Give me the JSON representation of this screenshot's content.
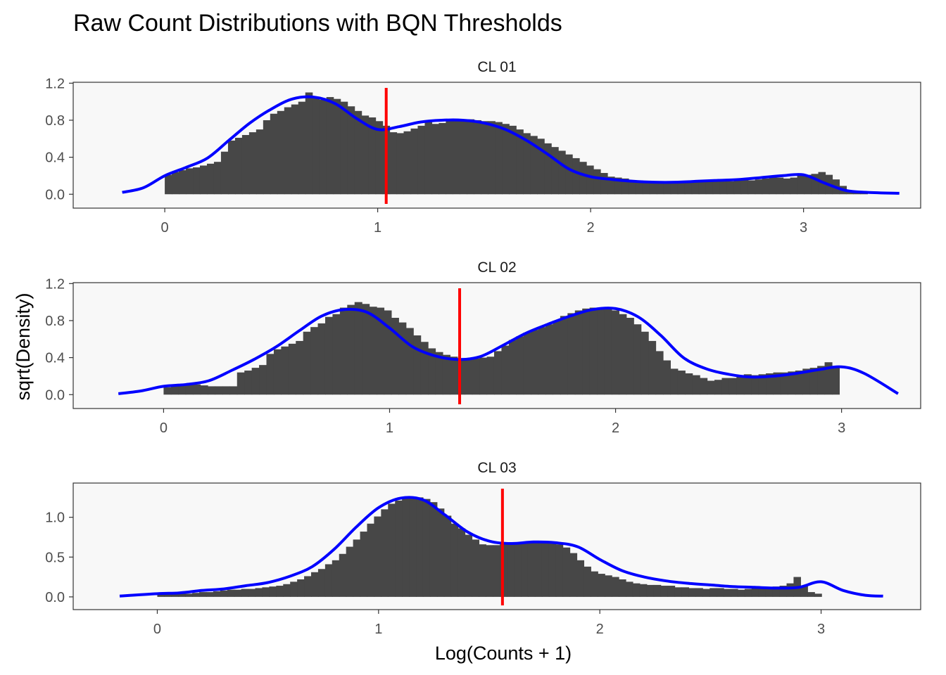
{
  "chart_data": {
    "type": "histogram",
    "title": "Raw Count Distributions with BQN Thresholds",
    "xlabel": "Log(Counts + 1)",
    "ylabel": "sqrt(Density)",
    "grid": false,
    "colors": {
      "bars": "#474747",
      "density": "#0000ff",
      "threshold": "#ff0000",
      "panel": "#f8f8f8",
      "border": "#333333"
    },
    "panels": [
      {
        "label": "CL 01",
        "xlim": [
          -0.43,
          3.55
        ],
        "ylim": [
          -0.15,
          1.21
        ],
        "xticks": [
          0,
          1,
          2,
          3
        ],
        "yticks": [
          0.0,
          0.4,
          0.8,
          1.2
        ],
        "ytick_labels": [
          "0.0",
          "0.4",
          "0.8",
          "1.2"
        ],
        "threshold": 1.04,
        "bin_start": 0.0,
        "bin_width": 0.033,
        "bars": [
          0.21,
          0.24,
          0.26,
          0.28,
          0.29,
          0.31,
          0.33,
          0.35,
          0.46,
          0.58,
          0.61,
          0.64,
          0.67,
          0.7,
          0.8,
          0.87,
          0.9,
          0.94,
          0.97,
          1.0,
          1.1,
          1.05,
          1.02,
          1.05,
          1.03,
          1.0,
          0.95,
          0.9,
          0.85,
          0.83,
          0.79,
          0.74,
          0.67,
          0.66,
          0.68,
          0.71,
          0.74,
          0.78,
          0.76,
          0.77,
          0.79,
          0.8,
          0.8,
          0.81,
          0.8,
          0.79,
          0.79,
          0.78,
          0.76,
          0.74,
          0.7,
          0.66,
          0.63,
          0.6,
          0.55,
          0.51,
          0.47,
          0.43,
          0.39,
          0.35,
          0.31,
          0.27,
          0.23,
          0.19,
          0.18,
          0.17,
          0.15,
          0.15,
          0.14,
          0.13,
          0.13,
          0.14,
          0.13,
          0.13,
          0.13,
          0.13,
          0.14,
          0.14,
          0.15,
          0.14,
          0.14,
          0.15,
          0.16,
          0.15,
          0.16,
          0.17,
          0.19,
          0.18,
          0.17,
          0.18,
          0.2,
          0.21,
          0.22,
          0.24,
          0.21,
          0.16,
          0.09,
          0.04,
          0.03,
          0.03
        ],
        "density": {
          "x": [
            -0.2,
            -0.1,
            0.0,
            0.1,
            0.2,
            0.3,
            0.4,
            0.5,
            0.6,
            0.7,
            0.8,
            0.9,
            1.0,
            1.1,
            1.2,
            1.3,
            1.4,
            1.5,
            1.6,
            1.7,
            1.8,
            1.9,
            2.0,
            2.1,
            2.2,
            2.3,
            2.4,
            2.5,
            2.6,
            2.7,
            2.8,
            2.9,
            3.0,
            3.1,
            3.2,
            3.3,
            3.45
          ],
          "y": [
            0.02,
            0.07,
            0.2,
            0.29,
            0.39,
            0.58,
            0.77,
            0.92,
            1.03,
            1.05,
            0.98,
            0.82,
            0.7,
            0.73,
            0.78,
            0.8,
            0.8,
            0.77,
            0.7,
            0.58,
            0.43,
            0.27,
            0.19,
            0.16,
            0.14,
            0.13,
            0.13,
            0.14,
            0.15,
            0.16,
            0.18,
            0.2,
            0.21,
            0.12,
            0.04,
            0.02,
            0.01
          ]
        }
      },
      {
        "label": "CL 02",
        "xlim": [
          -0.4,
          3.35
        ],
        "ylim": [
          -0.15,
          1.21
        ],
        "xticks": [
          0,
          1,
          2,
          3
        ],
        "yticks": [
          0.0,
          0.4,
          0.8,
          1.2
        ],
        "ytick_labels": [
          "0.0",
          "0.4",
          "0.8",
          "1.2"
        ],
        "threshold": 1.31,
        "bin_start": 0.0,
        "bin_width": 0.0325,
        "bars": [
          0.08,
          0.09,
          0.1,
          0.11,
          0.11,
          0.1,
          0.09,
          0.09,
          0.09,
          0.09,
          0.24,
          0.26,
          0.29,
          0.32,
          0.44,
          0.49,
          0.52,
          0.55,
          0.58,
          0.68,
          0.73,
          0.77,
          0.84,
          0.87,
          0.94,
          0.97,
          1.0,
          0.98,
          0.95,
          0.94,
          0.91,
          0.83,
          0.78,
          0.72,
          0.64,
          0.57,
          0.5,
          0.46,
          0.43,
          0.41,
          0.39,
          0.38,
          0.39,
          0.4,
          0.41,
          0.47,
          0.53,
          0.59,
          0.63,
          0.67,
          0.7,
          0.73,
          0.76,
          0.8,
          0.85,
          0.88,
          0.91,
          0.93,
          0.94,
          0.94,
          0.93,
          0.91,
          0.87,
          0.83,
          0.76,
          0.68,
          0.58,
          0.47,
          0.37,
          0.28,
          0.26,
          0.23,
          0.21,
          0.18,
          0.15,
          0.16,
          0.18,
          0.18,
          0.21,
          0.22,
          0.21,
          0.22,
          0.23,
          0.24,
          0.24,
          0.25,
          0.26,
          0.28,
          0.29,
          0.31,
          0.35,
          0.3
        ],
        "density": {
          "x": [
            -0.2,
            -0.1,
            0.0,
            0.1,
            0.2,
            0.3,
            0.4,
            0.5,
            0.6,
            0.7,
            0.8,
            0.9,
            1.0,
            1.1,
            1.2,
            1.3,
            1.4,
            1.5,
            1.6,
            1.7,
            1.8,
            1.9,
            2.0,
            2.1,
            2.2,
            2.3,
            2.4,
            2.5,
            2.6,
            2.7,
            2.8,
            2.9,
            3.0,
            3.1,
            3.25
          ],
          "y": [
            0.01,
            0.04,
            0.09,
            0.11,
            0.15,
            0.26,
            0.38,
            0.52,
            0.69,
            0.85,
            0.92,
            0.89,
            0.72,
            0.52,
            0.42,
            0.38,
            0.41,
            0.53,
            0.66,
            0.76,
            0.85,
            0.92,
            0.93,
            0.84,
            0.64,
            0.4,
            0.28,
            0.22,
            0.19,
            0.2,
            0.23,
            0.27,
            0.3,
            0.23,
            0.01
          ]
        }
      },
      {
        "label": "CL 03",
        "xlim": [
          -0.38,
          3.45
        ],
        "ylim": [
          -0.16,
          1.43
        ],
        "xticks": [
          0,
          1,
          2,
          3
        ],
        "yticks": [
          0.0,
          0.5,
          1.0
        ],
        "ytick_labels": [
          "0.0",
          "0.5",
          "1.0"
        ],
        "threshold": 1.56,
        "bin_start": 0.0,
        "bin_width": 0.0316,
        "bars": [
          0.05,
          0.04,
          0.04,
          0.04,
          0.04,
          0.05,
          0.06,
          0.06,
          0.07,
          0.08,
          0.09,
          0.09,
          0.1,
          0.1,
          0.11,
          0.12,
          0.13,
          0.14,
          0.16,
          0.19,
          0.22,
          0.26,
          0.31,
          0.35,
          0.41,
          0.46,
          0.54,
          0.63,
          0.72,
          0.82,
          0.92,
          1.01,
          1.1,
          1.17,
          1.21,
          1.24,
          1.25,
          1.25,
          1.23,
          1.19,
          1.11,
          1.02,
          0.92,
          0.86,
          0.78,
          0.72,
          0.66,
          0.65,
          0.65,
          0.66,
          0.68,
          0.68,
          0.69,
          0.7,
          0.7,
          0.69,
          0.67,
          0.66,
          0.62,
          0.55,
          0.46,
          0.38,
          0.32,
          0.29,
          0.27,
          0.25,
          0.22,
          0.19,
          0.17,
          0.16,
          0.15,
          0.15,
          0.14,
          0.14,
          0.12,
          0.12,
          0.11,
          0.11,
          0.1,
          0.11,
          0.11,
          0.1,
          0.1,
          0.09,
          0.1,
          0.11,
          0.11,
          0.12,
          0.13,
          0.14,
          0.17,
          0.25,
          0.14,
          0.06,
          0.04
        ],
        "density": {
          "x": [
            -0.17,
            0.0,
            0.1,
            0.2,
            0.3,
            0.4,
            0.5,
            0.6,
            0.7,
            0.8,
            0.9,
            1.0,
            1.1,
            1.2,
            1.3,
            1.4,
            1.5,
            1.6,
            1.7,
            1.8,
            1.9,
            2.0,
            2.1,
            2.2,
            2.3,
            2.4,
            2.5,
            2.6,
            2.7,
            2.8,
            2.9,
            3.0,
            3.1,
            3.2,
            3.28
          ],
          "y": [
            0.01,
            0.04,
            0.05,
            0.08,
            0.1,
            0.14,
            0.18,
            0.26,
            0.38,
            0.6,
            0.88,
            1.12,
            1.24,
            1.22,
            1.03,
            0.82,
            0.7,
            0.67,
            0.69,
            0.68,
            0.63,
            0.47,
            0.33,
            0.25,
            0.2,
            0.17,
            0.15,
            0.13,
            0.12,
            0.11,
            0.12,
            0.19,
            0.08,
            0.02,
            0.01
          ]
        }
      }
    ]
  }
}
